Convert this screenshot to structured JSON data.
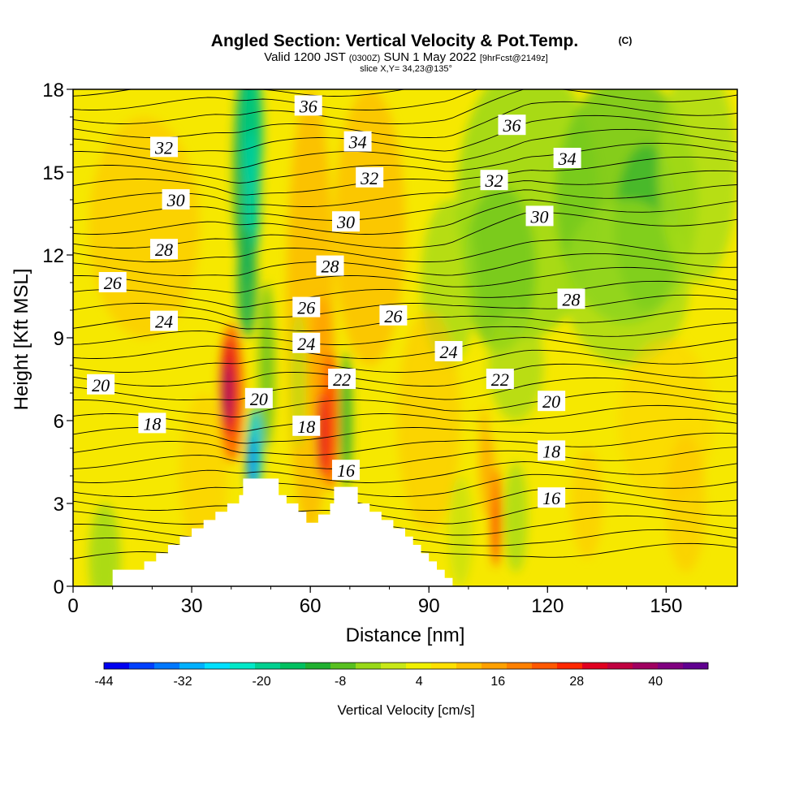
{
  "chart_data": {
    "type": "heatmap",
    "title": "Angled Section: Vertical Velocity & Pot.Temp.",
    "title_mark": "(C)",
    "subtitle_parts": [
      "Valid 1200 JST ",
      "(0300Z)",
      " SUN 1 May 2022 ",
      "[9hrFcst@2149z]"
    ],
    "slice_text": "slice X,Y= 34,23@135°",
    "xlabel": "Distance [nm]",
    "ylabel": "Height [Kft MSL]",
    "xlim": [
      0,
      168
    ],
    "ylim": [
      0,
      18
    ],
    "x_ticks": [
      0,
      30,
      60,
      90,
      120,
      150
    ],
    "y_ticks": [
      0,
      3,
      6,
      9,
      12,
      15,
      18
    ],
    "colorbar": {
      "label": "Vertical Velocity [cm/s]",
      "tick_values": [
        -44,
        -32,
        -20,
        -8,
        4,
        16,
        28,
        40
      ],
      "levels": [
        -44,
        -40,
        -36,
        -32,
        -28,
        -24,
        -20,
        -16,
        -12,
        -8,
        -4,
        0,
        4,
        8,
        12,
        16,
        20,
        24,
        28,
        32,
        36,
        40,
        44,
        48
      ],
      "colors": [
        "#0000f0",
        "#0040ff",
        "#0078ff",
        "#00b0ff",
        "#00e0ff",
        "#00e8c8",
        "#00d090",
        "#00c060",
        "#20b030",
        "#58c020",
        "#98d818",
        "#c8e818",
        "#f0f000",
        "#ffe000",
        "#ffc000",
        "#ffa000",
        "#ff8000",
        "#ff5800",
        "#ff2800",
        "#e00020",
        "#c00040",
        "#a00060",
        "#800080",
        "#600090"
      ]
    },
    "theta_labels": [
      {
        "value": "36",
        "x": 59.5,
        "y": 17.4
      },
      {
        "value": "36",
        "x": 111,
        "y": 16.7
      },
      {
        "value": "32",
        "x": 23,
        "y": 15.9
      },
      {
        "value": "34",
        "x": 72,
        "y": 16.1
      },
      {
        "value": "34",
        "x": 125,
        "y": 15.5
      },
      {
        "value": "32",
        "x": 75,
        "y": 14.8
      },
      {
        "value": "32",
        "x": 106.5,
        "y": 14.7
      },
      {
        "value": "30",
        "x": 26,
        "y": 14.0
      },
      {
        "value": "30",
        "x": 69,
        "y": 13.2
      },
      {
        "value": "30",
        "x": 118,
        "y": 13.4
      },
      {
        "value": "28",
        "x": 23,
        "y": 12.2
      },
      {
        "value": "28",
        "x": 65,
        "y": 11.6
      },
      {
        "value": "28",
        "x": 126,
        "y": 10.4
      },
      {
        "value": "26",
        "x": 10,
        "y": 11.0
      },
      {
        "value": "26",
        "x": 59,
        "y": 10.1
      },
      {
        "value": "26",
        "x": 81,
        "y": 9.8
      },
      {
        "value": "24",
        "x": 23,
        "y": 9.6
      },
      {
        "value": "24",
        "x": 59,
        "y": 8.8
      },
      {
        "value": "24",
        "x": 95,
        "y": 8.5
      },
      {
        "value": "22",
        "x": 68,
        "y": 7.5
      },
      {
        "value": "22",
        "x": 108,
        "y": 7.5
      },
      {
        "value": "20",
        "x": 7,
        "y": 7.3
      },
      {
        "value": "20",
        "x": 47,
        "y": 6.8
      },
      {
        "value": "20",
        "x": 121,
        "y": 6.7
      },
      {
        "value": "18",
        "x": 20,
        "y": 5.9
      },
      {
        "value": "18",
        "x": 59,
        "y": 5.8
      },
      {
        "value": "18",
        "x": 121,
        "y": 4.9
      },
      {
        "value": "16",
        "x": 69,
        "y": 4.2
      },
      {
        "value": "16",
        "x": 121,
        "y": 3.2
      }
    ],
    "terrain": [
      [
        0,
        0
      ],
      [
        10,
        0
      ],
      [
        10,
        0.6
      ],
      [
        18,
        0.6
      ],
      [
        18,
        0.9
      ],
      [
        21,
        0.9
      ],
      [
        21,
        1.2
      ],
      [
        24,
        1.2
      ],
      [
        24,
        1.5
      ],
      [
        27,
        1.5
      ],
      [
        27,
        1.8
      ],
      [
        30,
        1.8
      ],
      [
        30,
        2.1
      ],
      [
        33,
        2.1
      ],
      [
        33,
        2.4
      ],
      [
        36,
        2.4
      ],
      [
        36,
        2.7
      ],
      [
        39,
        2.7
      ],
      [
        39,
        3.0
      ],
      [
        42,
        3.0
      ],
      [
        42,
        3.3
      ],
      [
        43,
        3.3
      ],
      [
        43,
        3.9
      ],
      [
        52,
        3.9
      ],
      [
        52,
        3.3
      ],
      [
        54,
        3.3
      ],
      [
        54,
        3.0
      ],
      [
        57,
        3.0
      ],
      [
        57,
        2.7
      ],
      [
        59,
        2.7
      ],
      [
        59,
        2.3
      ],
      [
        62,
        2.3
      ],
      [
        62,
        2.6
      ],
      [
        65,
        2.6
      ],
      [
        65,
        3.0
      ],
      [
        66,
        3.0
      ],
      [
        66,
        3.6
      ],
      [
        72,
        3.6
      ],
      [
        72,
        3.0
      ],
      [
        75,
        3.0
      ],
      [
        75,
        2.7
      ],
      [
        78,
        2.7
      ],
      [
        78,
        2.4
      ],
      [
        81,
        2.4
      ],
      [
        81,
        2.1
      ],
      [
        84,
        2.1
      ],
      [
        84,
        1.8
      ],
      [
        86,
        1.8
      ],
      [
        86,
        1.5
      ],
      [
        88,
        1.5
      ],
      [
        88,
        1.2
      ],
      [
        90,
        1.2
      ],
      [
        90,
        0.9
      ],
      [
        92,
        0.9
      ],
      [
        92,
        0.6
      ],
      [
        94,
        0.6
      ],
      [
        94,
        0.3
      ],
      [
        96,
        0.3
      ],
      [
        96,
        0
      ],
      [
        168,
        0
      ]
    ]
  }
}
